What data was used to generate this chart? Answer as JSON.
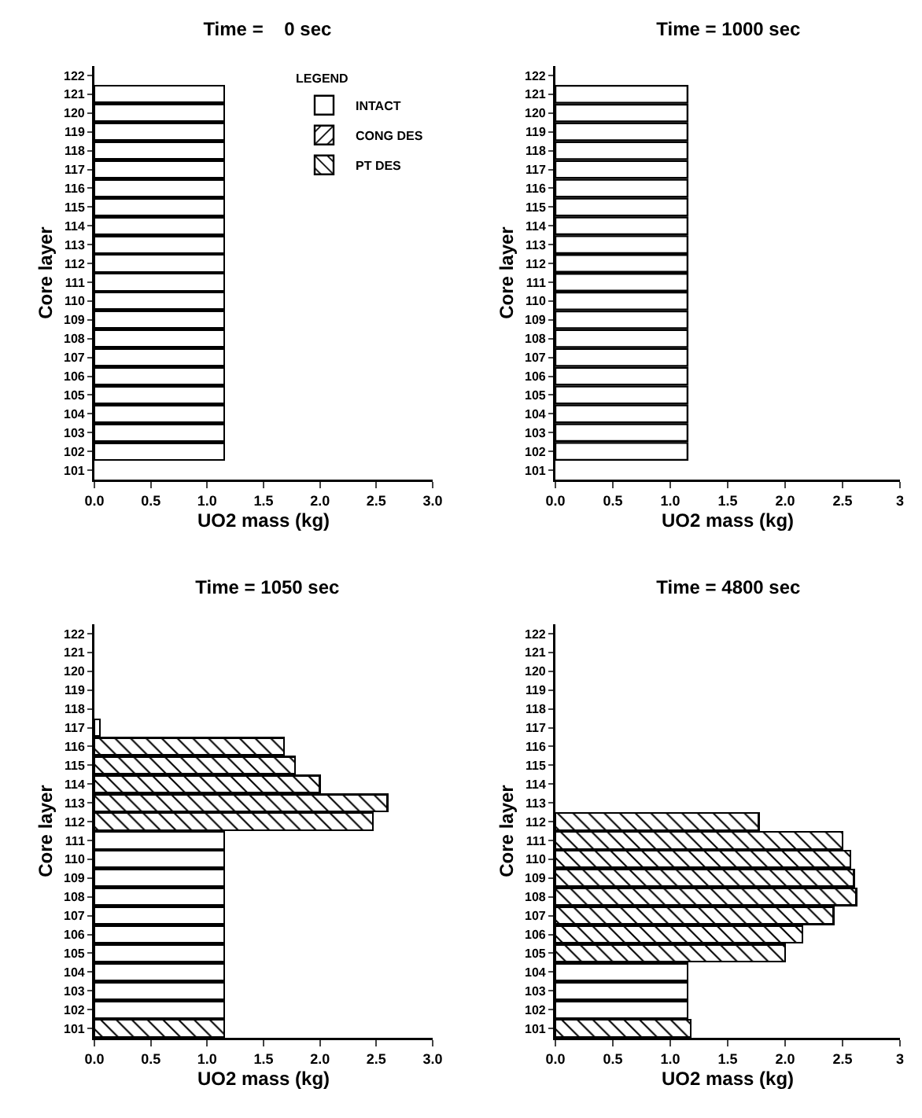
{
  "chart_data": [
    {
      "type": "bar",
      "orientation": "horizontal",
      "stacked": true,
      "title": "Time =    0 sec",
      "xlabel": "UO2 mass (kg)",
      "ylabel": "Core layer",
      "legend_title": "LEGEND",
      "legend": "top right",
      "grid": false,
      "categories": [
        "122",
        "121",
        "120",
        "119",
        "118",
        "117",
        "116",
        "115",
        "114",
        "113",
        "112",
        "111",
        "110",
        "109",
        "108",
        "107",
        "106",
        "105",
        "104",
        "103",
        "102",
        "101"
      ],
      "xlim": [
        0,
        3
      ],
      "xticks": [
        {
          "value": 0,
          "label": "0.0"
        },
        0.5,
        {
          "value": 1,
          "label": "1.0"
        },
        1.5,
        {
          "value": 2,
          "label": "2.0"
        },
        2.5,
        {
          "value": 3,
          "label": "3.0"
        }
      ],
      "series": [
        {
          "name": "INTACT",
          "color": "#ffffff",
          "values": [
            null,
            1.15,
            1.15,
            1.15,
            1.15,
            1.15,
            1.15,
            1.15,
            1.15,
            1.15,
            1.15,
            1.15,
            1.15,
            1.15,
            1.15,
            1.15,
            1.15,
            1.15,
            1.15,
            1.15,
            1.15,
            null
          ]
        },
        {
          "name": "CONG DES",
          "color": "#000000",
          "values": [
            null,
            null,
            null,
            null,
            null,
            null,
            null,
            null,
            null,
            null,
            null,
            null,
            null,
            null,
            null,
            null,
            null,
            null,
            null,
            null,
            null,
            null
          ]
        },
        {
          "name": "PT DES",
          "color": "#000000",
          "values": [
            null,
            null,
            null,
            null,
            null,
            null,
            null,
            null,
            null,
            null,
            null,
            null,
            null,
            null,
            null,
            null,
            null,
            null,
            null,
            null,
            null,
            null
          ]
        }
      ]
    },
    {
      "type": "bar",
      "orientation": "horizontal",
      "stacked": true,
      "title": "Time = 1000 sec",
      "xlabel": "UO2 mass (kg)",
      "ylabel": "Core layer",
      "grid": false,
      "categories": [
        "122",
        "121",
        "120",
        "119",
        "118",
        "117",
        "116",
        "115",
        "114",
        "113",
        "112",
        "111",
        "110",
        "109",
        "108",
        "107",
        "106",
        "105",
        "104",
        "103",
        "102",
        "101"
      ],
      "xlim": [
        0,
        3
      ],
      "xticks": [
        {
          "value": 0,
          "label": "0.0"
        },
        0.5,
        {
          "value": 1,
          "label": "1.0"
        },
        1.5,
        {
          "value": 2,
          "label": "2.0"
        },
        2.5,
        3
      ],
      "series": [
        {
          "color": "#ffffff",
          "values": [
            null,
            1.15,
            1.15,
            1.15,
            1.15,
            1.15,
            1.15,
            1.15,
            1.15,
            1.15,
            1.15,
            1.15,
            1.15,
            1.15,
            1.15,
            1.15,
            1.15,
            1.15,
            1.15,
            1.15,
            1.15,
            null
          ]
        }
      ]
    },
    {
      "type": "bar",
      "orientation": "horizontal",
      "stacked": true,
      "title": "Time = 1050 sec",
      "xlabel": "UO2 mass (kg)",
      "ylabel": "Core layer",
      "grid": false,
      "categories": [
        "122",
        "121",
        "120",
        "119",
        "118",
        "117",
        "116",
        "115",
        "114",
        "113",
        "112",
        "111",
        "110",
        "109",
        "108",
        "107",
        "106",
        "105",
        "104",
        "103",
        "102",
        "101"
      ],
      "xlim": [
        0,
        3
      ],
      "xticks": [
        {
          "value": 0,
          "label": "0.0"
        },
        0.5,
        {
          "value": 1,
          "label": "1.0"
        },
        1.5,
        {
          "value": 2,
          "label": "2.0"
        },
        2.5,
        {
          "value": 3,
          "label": "3.0"
        }
      ],
      "series": [
        {
          "color": "#ffffff",
          "values": [
            null,
            null,
            null,
            null,
            null,
            0.05,
            null,
            null,
            null,
            null,
            null,
            1.15,
            1.15,
            1.15,
            1.15,
            1.15,
            1.15,
            1.15,
            1.15,
            1.15,
            1.15,
            null
          ]
        },
        {
          "color": "#000000",
          "values": [
            null,
            null,
            null,
            null,
            null,
            null,
            null,
            null,
            null,
            null,
            null,
            null,
            null,
            null,
            null,
            null,
            null,
            null,
            null,
            null,
            null,
            null
          ]
        },
        {
          "color": "#000000",
          "values": [
            null,
            null,
            null,
            null,
            null,
            null,
            1.68,
            1.78,
            2.0,
            2.6,
            2.47,
            null,
            null,
            null,
            null,
            null,
            null,
            null,
            null,
            null,
            null,
            1.15
          ]
        }
      ]
    },
    {
      "type": "bar",
      "orientation": "horizontal",
      "stacked": true,
      "title": "Time = 4800 sec",
      "xlabel": "UO2 mass (kg)",
      "ylabel": "Core layer",
      "grid": false,
      "categories": [
        "122",
        "121",
        "120",
        "119",
        "118",
        "117",
        "116",
        "115",
        "114",
        "113",
        "112",
        "111",
        "110",
        "109",
        "108",
        "107",
        "106",
        "105",
        "104",
        "103",
        "102",
        "101"
      ],
      "xlim": [
        0,
        3
      ],
      "xticks": [
        {
          "value": 0,
          "label": "0.0"
        },
        0.5,
        {
          "value": 1,
          "label": "1.0"
        },
        1.5,
        {
          "value": 2,
          "label": "2.0"
        },
        2.5,
        3
      ],
      "series": [
        {
          "color": "#ffffff",
          "values": [
            null,
            null,
            null,
            null,
            null,
            null,
            null,
            null,
            null,
            null,
            null,
            null,
            null,
            null,
            null,
            null,
            null,
            null,
            1.15,
            1.15,
            1.15,
            null
          ]
        },
        {
          "color": "#000000",
          "values": [
            null,
            null,
            null,
            null,
            null,
            null,
            null,
            null,
            null,
            null,
            null,
            null,
            null,
            null,
            null,
            null,
            null,
            null,
            null,
            null,
            null,
            null
          ]
        },
        {
          "color": "#000000",
          "values": [
            null,
            null,
            null,
            null,
            null,
            null,
            null,
            null,
            null,
            null,
            1.77,
            2.5,
            2.57,
            2.6,
            2.62,
            2.42,
            2.15,
            2.0,
            null,
            null,
            null,
            1.18
          ]
        }
      ]
    }
  ]
}
